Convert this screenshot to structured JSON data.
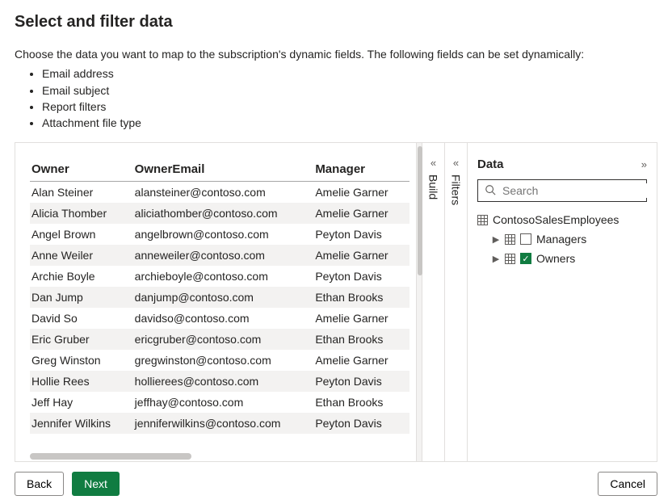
{
  "header": {
    "title": "Select and filter data",
    "intro": "Choose the data you want to map to the subscription's dynamic fields. The following fields can be set dynamically:",
    "bullets": [
      "Email address",
      "Email subject",
      "Report filters",
      "Attachment file type"
    ]
  },
  "table": {
    "columns": [
      "Owner",
      "OwnerEmail",
      "Manager"
    ],
    "rows": [
      [
        "Alan Steiner",
        "alansteiner@contoso.com",
        "Amelie Garner"
      ],
      [
        "Alicia Thomber",
        "aliciathomber@contoso.com",
        "Amelie Garner"
      ],
      [
        "Angel Brown",
        "angelbrown@contoso.com",
        "Peyton Davis"
      ],
      [
        "Anne Weiler",
        "anneweiler@contoso.com",
        "Amelie Garner"
      ],
      [
        "Archie Boyle",
        "archieboyle@contoso.com",
        "Peyton Davis"
      ],
      [
        "Dan Jump",
        "danjump@contoso.com",
        "Ethan Brooks"
      ],
      [
        "David So",
        "davidso@contoso.com",
        "Amelie Garner"
      ],
      [
        "Eric Gruber",
        "ericgruber@contoso.com",
        "Ethan Brooks"
      ],
      [
        "Greg Winston",
        "gregwinston@contoso.com",
        "Amelie Garner"
      ],
      [
        "Hollie Rees",
        "hollierees@contoso.com",
        "Peyton Davis"
      ],
      [
        "Jeff Hay",
        "jeffhay@contoso.com",
        "Ethan Brooks"
      ],
      [
        "Jennifer Wilkins",
        "jenniferwilkins@contoso.com",
        "Peyton Davis"
      ]
    ]
  },
  "rails": {
    "build": "Build",
    "filters": "Filters"
  },
  "dataPane": {
    "title": "Data",
    "searchPlaceholder": "Search",
    "rootTable": "ContosoSalesEmployees",
    "nodes": [
      {
        "label": "Managers",
        "checked": false
      },
      {
        "label": "Owners",
        "checked": true
      }
    ]
  },
  "footer": {
    "back": "Back",
    "next": "Next",
    "cancel": "Cancel"
  },
  "colors": {
    "accent": "#107c41",
    "border": "#e1dfdd",
    "stripe": "#f3f2f1"
  }
}
